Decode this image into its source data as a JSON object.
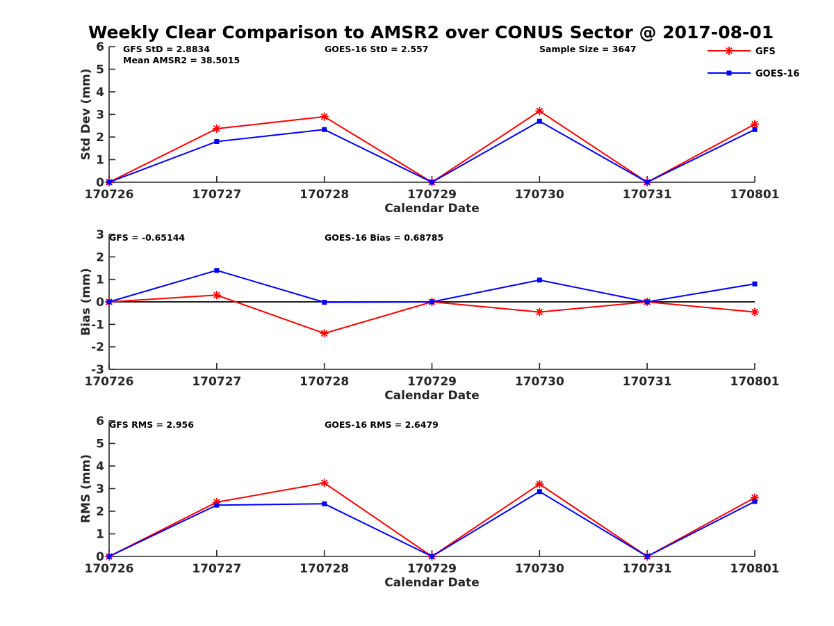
{
  "title": "Weekly Clear Comparison to AMSR2 over CONUS Sector @ 2017-08-01",
  "legend": {
    "placement": "top-right",
    "entries": [
      {
        "name": "GFS",
        "color": "#ff0000",
        "marker": "asterisk"
      },
      {
        "name": "GOES-16",
        "color": "#0000ff",
        "marker": "square"
      }
    ]
  },
  "chart_data": [
    {
      "type": "line",
      "xlabel": "Calendar Date",
      "ylabel": "Std Dev (mm)",
      "ylim": [
        0,
        6
      ],
      "yticks": [
        0,
        1,
        2,
        3,
        4,
        5,
        6
      ],
      "categories": [
        "170726",
        "170727",
        "170728",
        "170729",
        "170730",
        "170731",
        "170801"
      ],
      "zero_line": false,
      "annotations": [
        "GFS StD = 2.8834",
        "Mean AMSR2 = 38.5015",
        "GOES-16 StD = 2.557",
        "Sample Size = 3647"
      ],
      "series": [
        {
          "name": "GFS",
          "color": "#ff0000",
          "marker": "asterisk",
          "values": [
            0.0,
            2.37,
            2.9,
            0.0,
            3.15,
            0.0,
            2.57
          ]
        },
        {
          "name": "GOES-16",
          "color": "#0000ff",
          "marker": "square",
          "values": [
            0.0,
            1.8,
            2.33,
            0.0,
            2.7,
            0.0,
            2.33
          ]
        }
      ]
    },
    {
      "type": "line",
      "xlabel": "Calendar Date",
      "ylabel": "Bias (mm)",
      "ylim": [
        -3,
        3
      ],
      "yticks": [
        -3,
        -2,
        -1,
        0,
        1,
        2,
        3
      ],
      "categories": [
        "170726",
        "170727",
        "170728",
        "170729",
        "170730",
        "170731",
        "170801"
      ],
      "zero_line": true,
      "annotations": [
        "GFS = -0.65144",
        "GOES-16 Bias  = 0.68785"
      ],
      "series": [
        {
          "name": "GFS",
          "color": "#ff0000",
          "marker": "asterisk",
          "values": [
            0.0,
            0.3,
            -1.4,
            0.0,
            -0.45,
            0.0,
            -0.45
          ]
        },
        {
          "name": "GOES-16",
          "color": "#0000ff",
          "marker": "square",
          "values": [
            0.0,
            1.4,
            -0.02,
            0.0,
            0.97,
            0.0,
            0.8
          ]
        }
      ]
    },
    {
      "type": "line",
      "xlabel": "Calendar Date",
      "ylabel": "RMS (mm)",
      "ylim": [
        0,
        6
      ],
      "yticks": [
        0,
        1,
        2,
        3,
        4,
        5,
        6
      ],
      "categories": [
        "170726",
        "170727",
        "170728",
        "170729",
        "170730",
        "170731",
        "170801"
      ],
      "zero_line": false,
      "annotations": [
        "GFS RMS = 2.956",
        "GOES-16 RMS = 2.6479"
      ],
      "series": [
        {
          "name": "GFS",
          "color": "#ff0000",
          "marker": "asterisk",
          "values": [
            0.0,
            2.4,
            3.25,
            0.0,
            3.2,
            0.0,
            2.6
          ]
        },
        {
          "name": "GOES-16",
          "color": "#0000ff",
          "marker": "square",
          "values": [
            0.0,
            2.27,
            2.33,
            0.0,
            2.87,
            0.0,
            2.43
          ]
        }
      ]
    }
  ]
}
